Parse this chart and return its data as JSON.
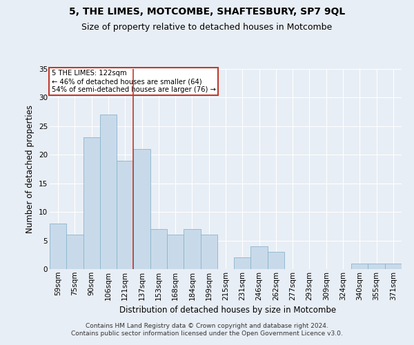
{
  "title": "5, THE LIMES, MOTCOMBE, SHAFTESBURY, SP7 9QL",
  "subtitle": "Size of property relative to detached houses in Motcombe",
  "xlabel": "Distribution of detached houses by size in Motcombe",
  "ylabel": "Number of detached properties",
  "bar_color": "#c8daea",
  "bar_edge_color": "#8ab4cc",
  "background_color": "#e8eef5",
  "plot_bg_color": "#e8eef5",
  "grid_color": "#ffffff",
  "vline_color": "#c0392b",
  "vline_x_idx": 4,
  "annotation_text": "5 THE LIMES: 122sqm\n← 46% of detached houses are smaller (64)\n54% of semi-detached houses are larger (76) →",
  "annotation_box_color": "#ffffff",
  "annotation_box_edge": "#c0392b",
  "categories": [
    "59sqm",
    "75sqm",
    "90sqm",
    "106sqm",
    "121sqm",
    "137sqm",
    "153sqm",
    "168sqm",
    "184sqm",
    "199sqm",
    "215sqm",
    "231sqm",
    "246sqm",
    "262sqm",
    "277sqm",
    "293sqm",
    "309sqm",
    "324sqm",
    "340sqm",
    "355sqm",
    "371sqm"
  ],
  "values": [
    8,
    6,
    23,
    27,
    19,
    21,
    7,
    6,
    7,
    6,
    0,
    2,
    4,
    3,
    0,
    0,
    0,
    0,
    1,
    1,
    1
  ],
  "ylim": [
    0,
    35
  ],
  "yticks": [
    0,
    5,
    10,
    15,
    20,
    25,
    30,
    35
  ],
  "footer_line1": "Contains HM Land Registry data © Crown copyright and database right 2024.",
  "footer_line2": "Contains public sector information licensed under the Open Government Licence v3.0.",
  "title_fontsize": 10,
  "subtitle_fontsize": 9,
  "tick_fontsize": 7.5,
  "label_fontsize": 8.5,
  "footer_fontsize": 6.5
}
